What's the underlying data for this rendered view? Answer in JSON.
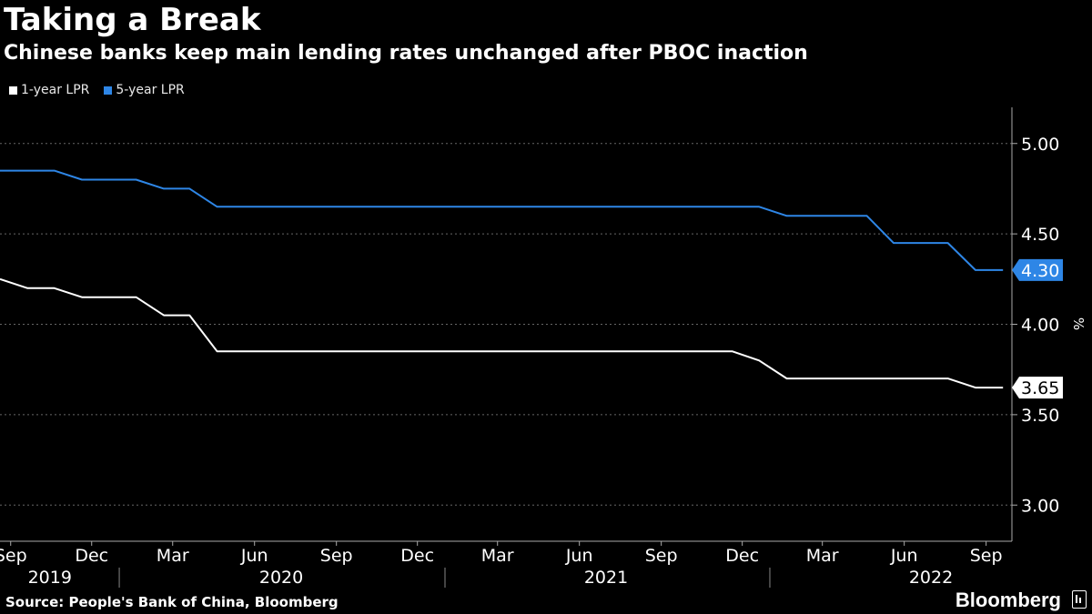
{
  "chart_data": {
    "type": "line",
    "title": "Taking a Break",
    "subtitle": "Chinese banks keep main lending rates unchanged after PBOC inaction",
    "ylabel": "%",
    "ylim": [
      2.8,
      5.2
    ],
    "yticks": [
      "3.00",
      "3.50",
      "4.00",
      "4.50",
      "5.00"
    ],
    "xlim": [
      "2019-08-20",
      "2022-09-30"
    ],
    "grid": true,
    "legend_position": "top-left",
    "month_ticks": [
      {
        "date": "2019-09-01",
        "label": "Sep"
      },
      {
        "date": "2019-12-01",
        "label": "Dec"
      },
      {
        "date": "2020-03-01",
        "label": "Mar"
      },
      {
        "date": "2020-06-01",
        "label": "Jun"
      },
      {
        "date": "2020-09-01",
        "label": "Sep"
      },
      {
        "date": "2020-12-01",
        "label": "Dec"
      },
      {
        "date": "2021-03-01",
        "label": "Mar"
      },
      {
        "date": "2021-06-01",
        "label": "Jun"
      },
      {
        "date": "2021-09-01",
        "label": "Sep"
      },
      {
        "date": "2021-12-01",
        "label": "Dec"
      },
      {
        "date": "2022-03-01",
        "label": "Mar"
      },
      {
        "date": "2022-06-01",
        "label": "Jun"
      },
      {
        "date": "2022-09-01",
        "label": "Sep"
      }
    ],
    "year_labels": [
      {
        "date": "2019-10-15",
        "label": "2019"
      },
      {
        "date": "2020-07-01",
        "label": "2020"
      },
      {
        "date": "2021-07-01",
        "label": "2021"
      },
      {
        "date": "2022-07-01",
        "label": "2022"
      }
    ],
    "year_dividers": [
      "2020-01-01",
      "2021-01-01",
      "2022-01-01"
    ],
    "series": [
      {
        "name": "1-year LPR",
        "color": "#ffffff",
        "end_label": "3.65",
        "points": [
          [
            "2019-08-20",
            4.25
          ],
          [
            "2019-09-20",
            4.2
          ],
          [
            "2019-10-20",
            4.2
          ],
          [
            "2019-11-20",
            4.15
          ],
          [
            "2019-12-20",
            4.15
          ],
          [
            "2020-01-20",
            4.15
          ],
          [
            "2020-02-20",
            4.05
          ],
          [
            "2020-03-20",
            4.05
          ],
          [
            "2020-04-20",
            3.85
          ],
          [
            "2020-05-20",
            3.85
          ],
          [
            "2020-06-20",
            3.85
          ],
          [
            "2020-07-20",
            3.85
          ],
          [
            "2020-08-20",
            3.85
          ],
          [
            "2020-09-20",
            3.85
          ],
          [
            "2020-10-20",
            3.85
          ],
          [
            "2020-11-20",
            3.85
          ],
          [
            "2020-12-20",
            3.85
          ],
          [
            "2021-01-20",
            3.85
          ],
          [
            "2021-02-20",
            3.85
          ],
          [
            "2021-03-20",
            3.85
          ],
          [
            "2021-04-20",
            3.85
          ],
          [
            "2021-05-20",
            3.85
          ],
          [
            "2021-06-20",
            3.85
          ],
          [
            "2021-07-20",
            3.85
          ],
          [
            "2021-08-20",
            3.85
          ],
          [
            "2021-09-20",
            3.85
          ],
          [
            "2021-10-20",
            3.85
          ],
          [
            "2021-11-20",
            3.85
          ],
          [
            "2021-12-20",
            3.8
          ],
          [
            "2022-01-20",
            3.7
          ],
          [
            "2022-02-20",
            3.7
          ],
          [
            "2022-03-20",
            3.7
          ],
          [
            "2022-04-20",
            3.7
          ],
          [
            "2022-05-20",
            3.7
          ],
          [
            "2022-06-20",
            3.7
          ],
          [
            "2022-07-20",
            3.7
          ],
          [
            "2022-08-20",
            3.65
          ],
          [
            "2022-09-20",
            3.65
          ]
        ]
      },
      {
        "name": "5-year LPR",
        "color": "#2e86e6",
        "end_label": "4.30",
        "points": [
          [
            "2019-08-20",
            4.85
          ],
          [
            "2019-09-20",
            4.85
          ],
          [
            "2019-10-20",
            4.85
          ],
          [
            "2019-11-20",
            4.8
          ],
          [
            "2019-12-20",
            4.8
          ],
          [
            "2020-01-20",
            4.8
          ],
          [
            "2020-02-20",
            4.75
          ],
          [
            "2020-03-20",
            4.75
          ],
          [
            "2020-04-20",
            4.65
          ],
          [
            "2020-05-20",
            4.65
          ],
          [
            "2020-06-20",
            4.65
          ],
          [
            "2020-07-20",
            4.65
          ],
          [
            "2020-08-20",
            4.65
          ],
          [
            "2020-09-20",
            4.65
          ],
          [
            "2020-10-20",
            4.65
          ],
          [
            "2020-11-20",
            4.65
          ],
          [
            "2020-12-20",
            4.65
          ],
          [
            "2021-01-20",
            4.65
          ],
          [
            "2021-02-20",
            4.65
          ],
          [
            "2021-03-20",
            4.65
          ],
          [
            "2021-04-20",
            4.65
          ],
          [
            "2021-05-20",
            4.65
          ],
          [
            "2021-06-20",
            4.65
          ],
          [
            "2021-07-20",
            4.65
          ],
          [
            "2021-08-20",
            4.65
          ],
          [
            "2021-09-20",
            4.65
          ],
          [
            "2021-10-20",
            4.65
          ],
          [
            "2021-11-20",
            4.65
          ],
          [
            "2021-12-20",
            4.65
          ],
          [
            "2022-01-20",
            4.6
          ],
          [
            "2022-02-20",
            4.6
          ],
          [
            "2022-03-20",
            4.6
          ],
          [
            "2022-04-20",
            4.6
          ],
          [
            "2022-05-20",
            4.45
          ],
          [
            "2022-06-20",
            4.45
          ],
          [
            "2022-07-20",
            4.45
          ],
          [
            "2022-08-20",
            4.3
          ],
          [
            "2022-09-20",
            4.3
          ]
        ]
      }
    ]
  },
  "source": "Source: People's Bank of China, Bloomberg",
  "brand": "Bloomberg"
}
